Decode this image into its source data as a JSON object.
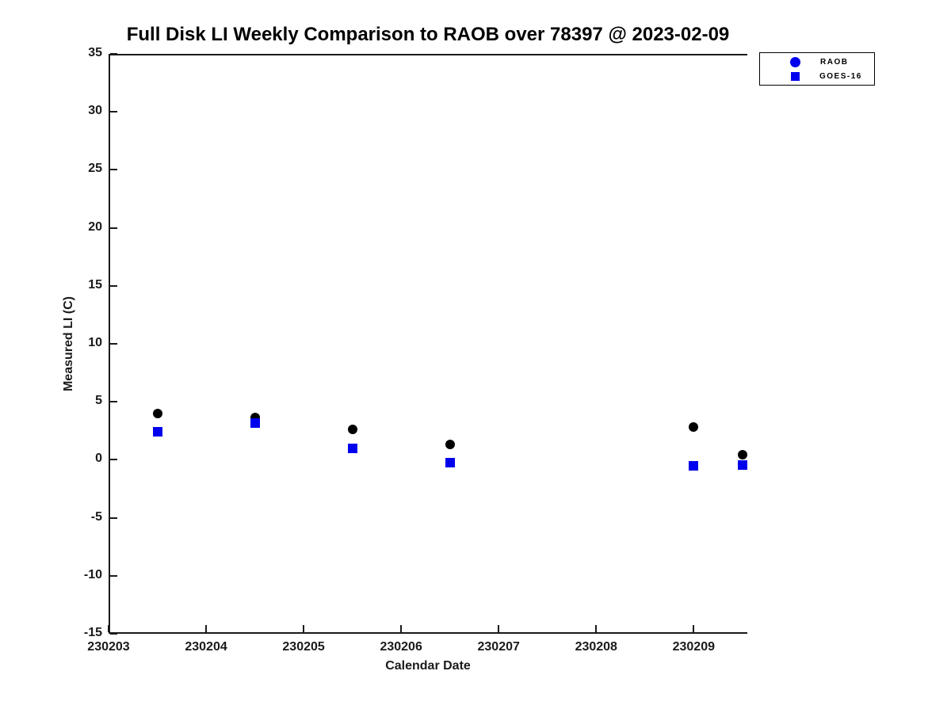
{
  "chart_data": {
    "type": "scatter",
    "title": "Full Disk LI Weekly Comparison to RAOB over 78397 @ 2023-02-09",
    "xlabel": "Calendar Date",
    "ylabel": "Measured LI (C)",
    "xlim": [
      230203,
      230209.55
    ],
    "ylim": [
      -15,
      35
    ],
    "xticks": [
      230203,
      230204,
      230205,
      230206,
      230207,
      230208,
      230209
    ],
    "yticks": [
      35,
      30,
      25,
      20,
      15,
      10,
      5,
      0,
      -5,
      -10,
      -15
    ],
    "grid": false,
    "legend_position": "outside-top-right",
    "x": [
      230203.5,
      230204.5,
      230205.5,
      230206.5,
      230209.0,
      230209.5
    ],
    "series": [
      {
        "name": "RAOB",
        "marker": "circle",
        "color": "#000000",
        "legend_marker_color": "#0000ee",
        "values": [
          4.0,
          3.65,
          2.6,
          1.3,
          2.8,
          0.45
        ]
      },
      {
        "name": "GOES-16",
        "marker": "square",
        "color": "#0000ee",
        "legend_marker_color": "#0000ee",
        "values": [
          2.4,
          3.15,
          1.0,
          -0.25,
          -0.5,
          -0.45
        ]
      }
    ]
  }
}
